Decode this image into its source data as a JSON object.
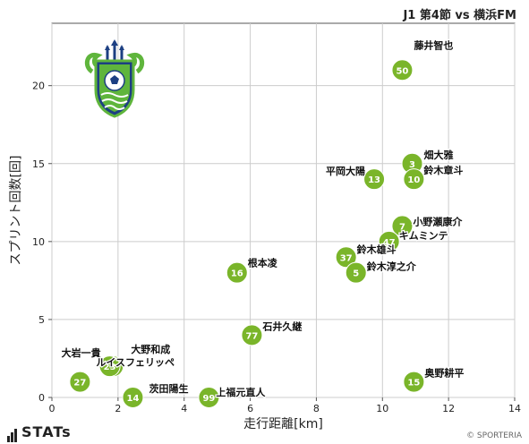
{
  "header": {
    "title": "J1 第4節 vs 横浜FM"
  },
  "footer": {
    "brand": "STATs",
    "copyright": "© SPORTERIA"
  },
  "colors": {
    "point": "#7ab52a",
    "point_stroke": "#ffffff",
    "grid": "#cccccc",
    "emblem_navy": "#1c3f82",
    "emblem_green": "#5fb53c"
  },
  "icons": {
    "team_emblem": "shonan-bellmare-emblem-icon",
    "brand": "stats-logo-icon"
  },
  "chart_data": {
    "type": "scatter",
    "title": "",
    "xlabel": "走行距離[km]",
    "ylabel": "スプリント回数[回]",
    "xlim": [
      0,
      14
    ],
    "ylim": [
      0,
      24
    ],
    "xticks": [
      0,
      2,
      4,
      6,
      8,
      10,
      12,
      14
    ],
    "yticks": [
      0,
      5,
      10,
      15,
      20
    ],
    "grid": true,
    "legend": "none",
    "points": [
      {
        "number": "50",
        "name": "藤井智也",
        "x": 10.6,
        "y": 21
      },
      {
        "number": "3",
        "name": "畑大雅",
        "x": 10.9,
        "y": 15
      },
      {
        "number": "10",
        "name": "鈴木章斗",
        "x": 10.95,
        "y": 14
      },
      {
        "number": "13",
        "name": "平岡大陽",
        "x": 9.75,
        "y": 14
      },
      {
        "number": "7",
        "name": "小野瀬康介",
        "x": 10.6,
        "y": 11
      },
      {
        "number": "47",
        "name": "キムミンテ",
        "x": 10.2,
        "y": 10
      },
      {
        "number": "37",
        "name": "鈴木雄斗",
        "x": 8.9,
        "y": 9
      },
      {
        "number": "5",
        "name": "鈴木淳之介",
        "x": 9.2,
        "y": 8
      },
      {
        "number": "16",
        "name": "根本凌",
        "x": 5.6,
        "y": 8
      },
      {
        "number": "77",
        "name": "石井久継",
        "x": 6.05,
        "y": 4
      },
      {
        "number": "28",
        "name": "大野和成",
        "x": 1.85,
        "y": 2
      },
      {
        "number": "23",
        "name": "大岩一貴",
        "x": 1.75,
        "y": 2
      },
      {
        "number": "27",
        "name": "ルイスフェリッペ",
        "x": 0.85,
        "y": 1
      },
      {
        "number": "15",
        "name": "奥野耕平",
        "x": 10.95,
        "y": 1
      },
      {
        "number": "14",
        "name": "茨田陽生",
        "x": 2.45,
        "y": 0
      },
      {
        "number": "99",
        "name": "上福元直人",
        "x": 4.75,
        "y": 0
      }
    ]
  }
}
